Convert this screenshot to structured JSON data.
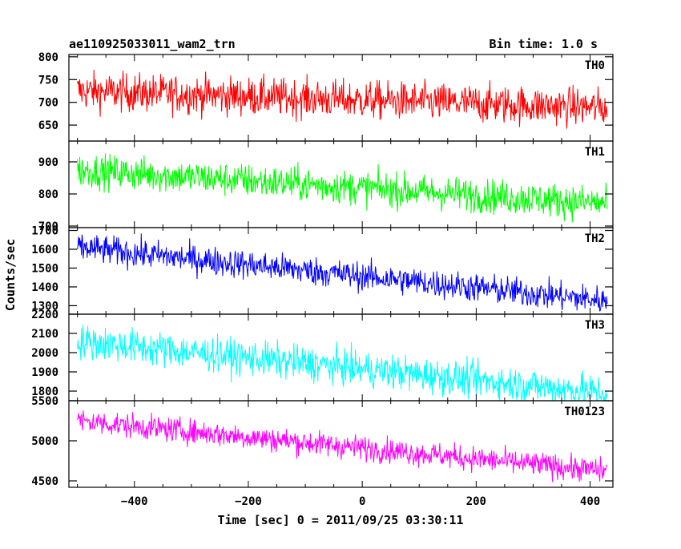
{
  "header": {
    "title": "ae110925033011_wam2_trn",
    "bin_time": "Bin time: 1.0 s"
  },
  "chart_data": {
    "type": "line",
    "title": "ae110925033011_wam2_trn",
    "xlabel": "Time [sec] 0 = 2011/09/25 03:30:11",
    "ylabel": "Counts/sec",
    "xlim": [
      -515,
      440
    ],
    "x_range": [
      -500,
      430
    ],
    "xticks": [
      -400,
      -200,
      0,
      200,
      400
    ],
    "grid": false,
    "panels": [
      {
        "name": "TH0",
        "color": "#ff0000",
        "ylim": [
          615,
          805
        ],
        "yticks": [
          650,
          700,
          750,
          800
        ],
        "trend": [
          725,
          688
        ],
        "noise": 30
      },
      {
        "name": "TH1",
        "color": "#00ff00",
        "ylim": [
          695,
          965
        ],
        "yticks": [
          700,
          800,
          900
        ],
        "trend": [
          875,
          770
        ],
        "noise": 38
      },
      {
        "name": "TH2",
        "color": "#0000ff",
        "ylim": [
          1255,
          1715
        ],
        "yticks": [
          1300,
          1400,
          1500,
          1600,
          1700
        ],
        "trend": [
          1610,
          1325
        ],
        "noise": 55
      },
      {
        "name": "TH3",
        "color": "#00ffff",
        "ylim": [
          1750,
          2200
        ],
        "yticks": [
          1800,
          1900,
          2000,
          2100,
          2200
        ],
        "trend": [
          2060,
          1790
        ],
        "noise": 65
      },
      {
        "name": "TH0123",
        "color": "#ff00ff",
        "ylim": [
          4420,
          5500
        ],
        "yticks": [
          4500,
          5000,
          5500
        ],
        "trend": [
          5250,
          4620
        ],
        "noise": 110
      }
    ]
  }
}
